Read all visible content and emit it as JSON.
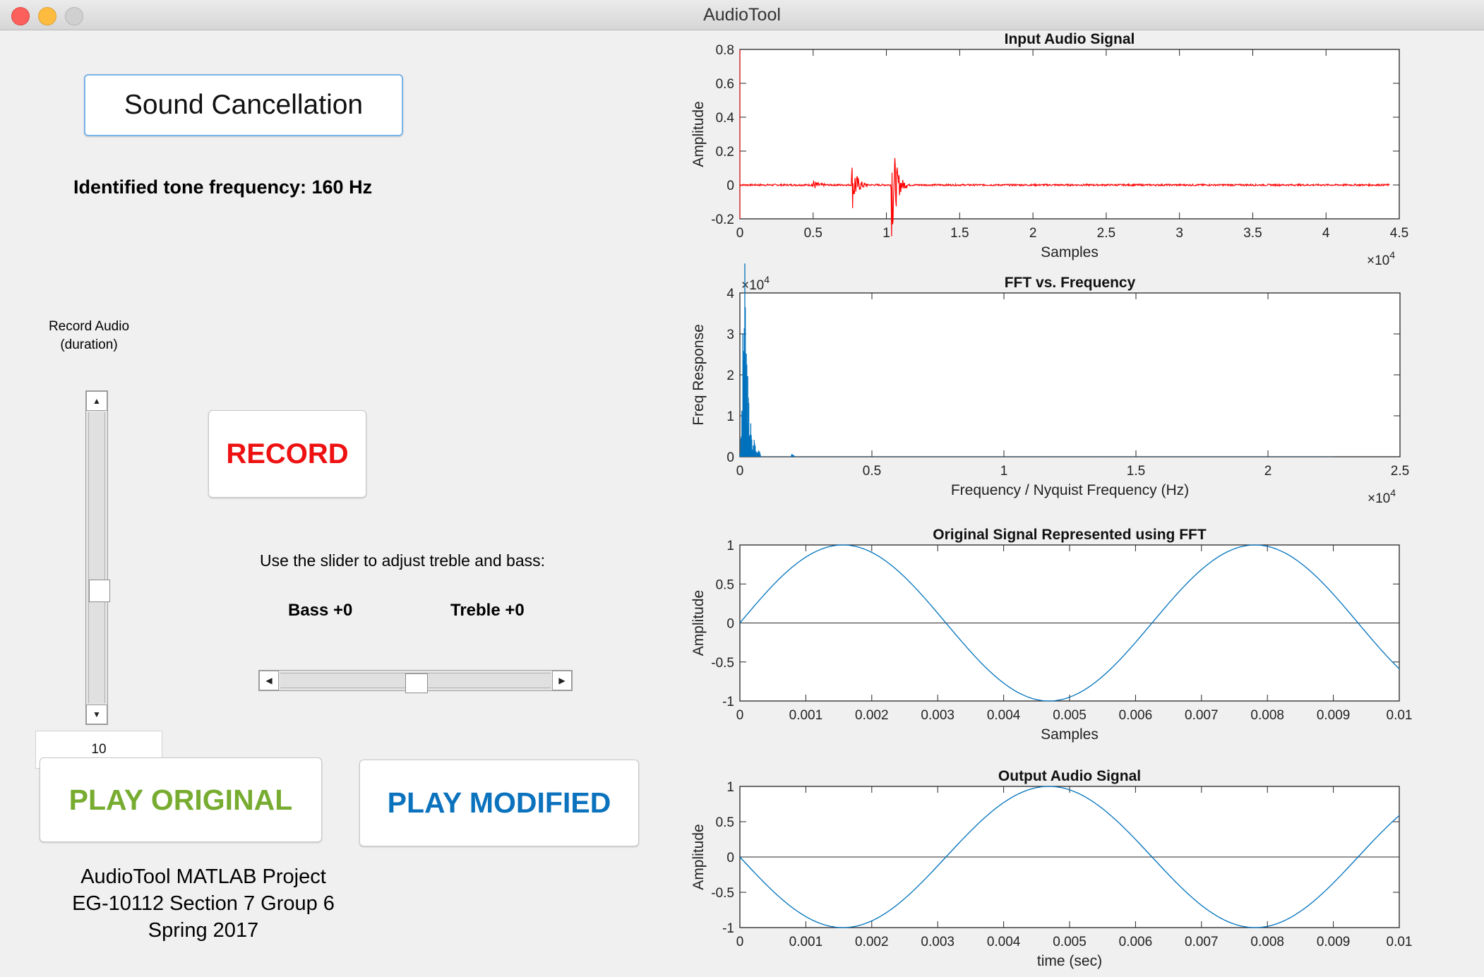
{
  "window": {
    "title": "AudioTool"
  },
  "buttons": {
    "sound_cancellation": "Sound Cancellation",
    "record": "RECORD",
    "play_original": "PLAY ORIGINAL",
    "play_modified": "PLAY MODIFIED"
  },
  "colors": {
    "record": "#ee1111",
    "play_original": "#77ac30",
    "play_modified": "#0b72bd",
    "input_signal": "#ff0000",
    "fft_signal": "#0072bd",
    "sine_line": "#0072bd",
    "sound_button_border": "#7ab3ea"
  },
  "labels": {
    "identified_tone": "Identified tone frequency: 160 Hz",
    "record_audio_line1": "Record Audio",
    "record_audio_line2": "(duration)",
    "slider_instruction": "Use the slider to adjust treble and bass:",
    "bass": "Bass   +0",
    "treble": "Treble   +0"
  },
  "duration": {
    "value": "10"
  },
  "sliders": {
    "duration_slider_fraction": 0.62,
    "treble_bass_fraction": 0.5
  },
  "credits": [
    "AudioTool MATLAB Project",
    "EG-10112 Section 7 Group 6",
    "Spring 2017"
  ],
  "chart_data": [
    {
      "type": "line",
      "title": "Input Audio Signal",
      "xlabel": "Samples",
      "ylabel": "Amplitude",
      "xlim": [
        0,
        4.5
      ],
      "ylim": [
        -0.2,
        0.8
      ],
      "xticks": [
        "0",
        "0.5",
        "1",
        "1.5",
        "2",
        "2.5",
        "3",
        "3.5",
        "4",
        "4.5"
      ],
      "yticks": [
        "-0.2",
        "0",
        "0.2",
        "0.4",
        "0.6",
        "0.8"
      ],
      "x_multiplier": "×10^4",
      "series": [
        {
          "color": "#ff0000",
          "bursts": [
            {
              "x": 0.5,
              "amplitude": 0.03
            },
            {
              "x": 0.77,
              "amplitude": 0.14
            },
            {
              "x": 1.04,
              "amplitude": 0.3
            }
          ],
          "noise": 0.005
        }
      ]
    },
    {
      "type": "line",
      "title": "FFT vs. Frequency",
      "xlabel": "Frequency / Nyquist Frequency (Hz)",
      "ylabel": "Freq Response",
      "xlim": [
        0,
        2.5
      ],
      "ylim": [
        0,
        4
      ],
      "xticks": [
        "0",
        "0.5",
        "1",
        "1.5",
        "2",
        "2.5"
      ],
      "yticks": [
        "0",
        "1",
        "2",
        "3",
        "4"
      ],
      "x_multiplier": "×10^4",
      "y_multiplier": "×10^4",
      "series": [
        {
          "color": "#0072bd",
          "peaks": [
            {
              "x": 0.01,
              "y": 1.2
            },
            {
              "x": 0.016,
              "y": 3.4
            },
            {
              "x": 0.022,
              "y": 2.6
            },
            {
              "x": 0.03,
              "y": 1.6
            },
            {
              "x": 0.04,
              "y": 0.9
            },
            {
              "x": 0.055,
              "y": 0.5
            },
            {
              "x": 0.07,
              "y": 0.25
            },
            {
              "x": 0.2,
              "y": 0.08
            }
          ]
        }
      ]
    },
    {
      "type": "line",
      "title": "Original Signal Represented using FFT",
      "xlabel": "Samples",
      "ylabel": "Amplitude",
      "xlim": [
        0,
        0.01
      ],
      "ylim": [
        -1,
        1
      ],
      "xticks": [
        "0",
        "0.001",
        "0.002",
        "0.003",
        "0.004",
        "0.005",
        "0.006",
        "0.007",
        "0.008",
        "0.009",
        "0.01"
      ],
      "yticks": [
        "-1",
        "-0.5",
        "0",
        "0.5",
        "1"
      ],
      "series": [
        {
          "color": "#0072bd",
          "function": "sine",
          "frequency_hz": 160,
          "sign": 1
        }
      ]
    },
    {
      "type": "line",
      "title": "Output Audio Signal",
      "xlabel": "time (sec)",
      "ylabel": "Amplitude",
      "xlim": [
        0,
        0.01
      ],
      "ylim": [
        -1,
        1
      ],
      "xticks": [
        "0",
        "0.001",
        "0.002",
        "0.003",
        "0.004",
        "0.005",
        "0.006",
        "0.007",
        "0.008",
        "0.009",
        "0.01"
      ],
      "yticks": [
        "-1",
        "-0.5",
        "0",
        "0.5",
        "1"
      ],
      "series": [
        {
          "color": "#0072bd",
          "function": "sine",
          "frequency_hz": 160,
          "sign": -1
        }
      ]
    }
  ]
}
